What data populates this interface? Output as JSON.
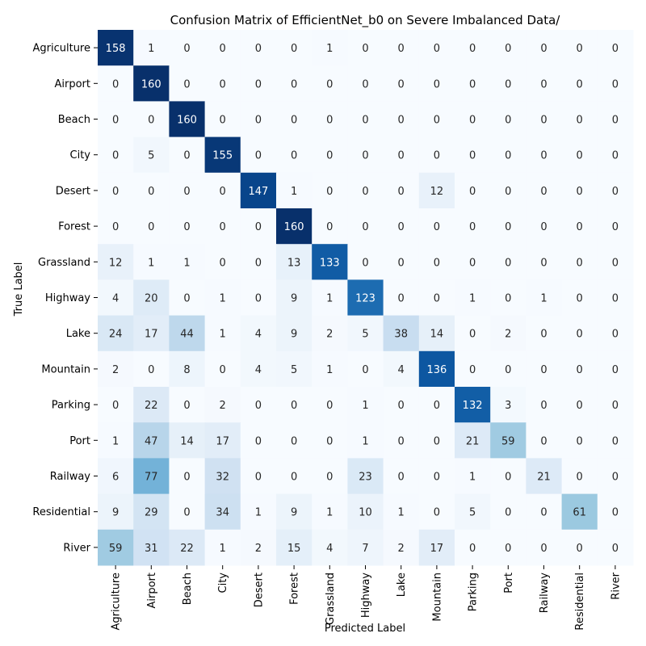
{
  "chart_data": {
    "type": "heatmap",
    "title": "Confusion Matrix of EfficientNet_b0 on Severe Imbalanced Data/",
    "xlabel": "Predicted Label",
    "ylabel": "True Label",
    "colormap": "Blues",
    "value_range": [
      0,
      160
    ],
    "x_categories": [
      "Agriculture",
      "Airport",
      "Beach",
      "City",
      "Desert",
      "Forest",
      "Grassland",
      "Highway",
      "Lake",
      "Mountain",
      "Parking",
      "Port",
      "Railway",
      "Residential",
      "River"
    ],
    "y_categories": [
      "Agriculture",
      "Airport",
      "Beach",
      "City",
      "Desert",
      "Forest",
      "Grassland",
      "Highway",
      "Lake",
      "Mountain",
      "Parking",
      "Port",
      "Railway",
      "Residential",
      "River"
    ],
    "values": [
      [
        158,
        1,
        0,
        0,
        0,
        0,
        1,
        0,
        0,
        0,
        0,
        0,
        0,
        0,
        0
      ],
      [
        0,
        160,
        0,
        0,
        0,
        0,
        0,
        0,
        0,
        0,
        0,
        0,
        0,
        0,
        0
      ],
      [
        0,
        0,
        160,
        0,
        0,
        0,
        0,
        0,
        0,
        0,
        0,
        0,
        0,
        0,
        0
      ],
      [
        0,
        5,
        0,
        155,
        0,
        0,
        0,
        0,
        0,
        0,
        0,
        0,
        0,
        0,
        0
      ],
      [
        0,
        0,
        0,
        0,
        147,
        1,
        0,
        0,
        0,
        12,
        0,
        0,
        0,
        0,
        0
      ],
      [
        0,
        0,
        0,
        0,
        0,
        160,
        0,
        0,
        0,
        0,
        0,
        0,
        0,
        0,
        0
      ],
      [
        12,
        1,
        1,
        0,
        0,
        13,
        133,
        0,
        0,
        0,
        0,
        0,
        0,
        0,
        0
      ],
      [
        4,
        20,
        0,
        1,
        0,
        9,
        1,
        123,
        0,
        0,
        1,
        0,
        1,
        0,
        0
      ],
      [
        24,
        17,
        44,
        1,
        4,
        9,
        2,
        5,
        38,
        14,
        0,
        2,
        0,
        0,
        0
      ],
      [
        2,
        0,
        8,
        0,
        4,
        5,
        1,
        0,
        4,
        136,
        0,
        0,
        0,
        0,
        0
      ],
      [
        0,
        22,
        0,
        2,
        0,
        0,
        0,
        1,
        0,
        0,
        132,
        3,
        0,
        0,
        0
      ],
      [
        1,
        47,
        14,
        17,
        0,
        0,
        0,
        1,
        0,
        0,
        21,
        59,
        0,
        0,
        0
      ],
      [
        6,
        77,
        0,
        32,
        0,
        0,
        0,
        23,
        0,
        0,
        1,
        0,
        21,
        0,
        0
      ],
      [
        9,
        29,
        0,
        34,
        1,
        9,
        1,
        10,
        1,
        0,
        5,
        0,
        0,
        61,
        0
      ],
      [
        59,
        31,
        22,
        1,
        2,
        15,
        4,
        7,
        2,
        17,
        0,
        0,
        0,
        0,
        0
      ]
    ]
  }
}
